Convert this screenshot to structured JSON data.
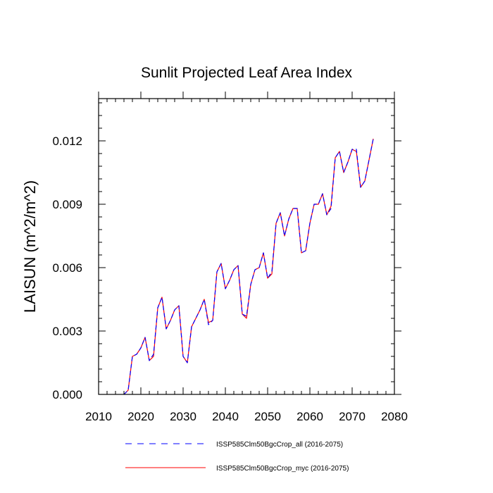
{
  "chart_data": {
    "type": "line",
    "title": "Sunlit Projected Leaf Area Index",
    "xlabel": "",
    "ylabel": "LAISUN  (m^2/m^2)",
    "xlim": [
      2010,
      2080
    ],
    "ylim": [
      0,
      0.014
    ],
    "x_ticks": [
      2010,
      2020,
      2030,
      2040,
      2050,
      2060,
      2070,
      2080
    ],
    "x_tick_labels": [
      "2010",
      "2020",
      "2030",
      "2040",
      "2050",
      "2060",
      "2070",
      "2080"
    ],
    "y_ticks": [
      0,
      0.003,
      0.006,
      0.009,
      0.012
    ],
    "y_tick_labels": [
      "0.000",
      "0.003",
      "0.006",
      "0.009",
      "0.012"
    ],
    "grid": false,
    "legend_position": "bottom",
    "x": [
      2016,
      2017,
      2018,
      2019,
      2020,
      2021,
      2022,
      2023,
      2024,
      2025,
      2026,
      2027,
      2028,
      2029,
      2030,
      2031,
      2032,
      2033,
      2034,
      2035,
      2036,
      2037,
      2038,
      2039,
      2040,
      2041,
      2042,
      2043,
      2044,
      2045,
      2046,
      2047,
      2048,
      2049,
      2050,
      2051,
      2052,
      2053,
      2054,
      2055,
      2056,
      2057,
      2058,
      2059,
      2060,
      2061,
      2062,
      2063,
      2064,
      2065,
      2066,
      2067,
      2068,
      2069,
      2070,
      2071,
      2072,
      2073,
      2074,
      2075
    ],
    "series": [
      {
        "name": "ISSP585Clm50BgcCrop_all (2016-2075)",
        "color": "#0000ff",
        "dash": "dashed",
        "values": [
          0.0,
          0.0002,
          0.0018,
          0.0019,
          0.0022,
          0.0027,
          0.0016,
          0.0019,
          0.0041,
          0.0046,
          0.0031,
          0.0035,
          0.004,
          0.0042,
          0.0018,
          0.0015,
          0.0032,
          0.0036,
          0.004,
          0.0045,
          0.0033,
          0.0035,
          0.0058,
          0.0062,
          0.005,
          0.0054,
          0.0059,
          0.0061,
          0.0038,
          0.0037,
          0.0052,
          0.0059,
          0.006,
          0.0067,
          0.0055,
          0.0058,
          0.0081,
          0.0086,
          0.0075,
          0.0083,
          0.0088,
          0.0088,
          0.0067,
          0.0068,
          0.0081,
          0.009,
          0.009,
          0.0095,
          0.0085,
          0.0088,
          0.0112,
          0.0115,
          0.0105,
          0.011,
          0.0116,
          0.0116,
          0.0098,
          0.0101,
          0.0111,
          0.0121
        ]
      },
      {
        "name": "ISSP585Clm50BgcCrop_myc (2016-2075)",
        "color": "#ff0000",
        "dash": "solid",
        "values": [
          0.0,
          0.0002,
          0.0018,
          0.0019,
          0.0022,
          0.0027,
          0.0016,
          0.0018,
          0.0041,
          0.0046,
          0.0031,
          0.0035,
          0.004,
          0.0042,
          0.0018,
          0.0015,
          0.0032,
          0.0036,
          0.004,
          0.0045,
          0.0034,
          0.0035,
          0.0058,
          0.0062,
          0.005,
          0.0054,
          0.0059,
          0.0061,
          0.0038,
          0.0036,
          0.0052,
          0.0059,
          0.006,
          0.0067,
          0.0055,
          0.0057,
          0.0081,
          0.0086,
          0.0075,
          0.0083,
          0.0088,
          0.0088,
          0.0067,
          0.0068,
          0.0081,
          0.009,
          0.009,
          0.0095,
          0.0085,
          0.0089,
          0.0112,
          0.0115,
          0.0105,
          0.011,
          0.0116,
          0.0115,
          0.0098,
          0.0101,
          0.0111,
          0.0121
        ]
      }
    ]
  }
}
